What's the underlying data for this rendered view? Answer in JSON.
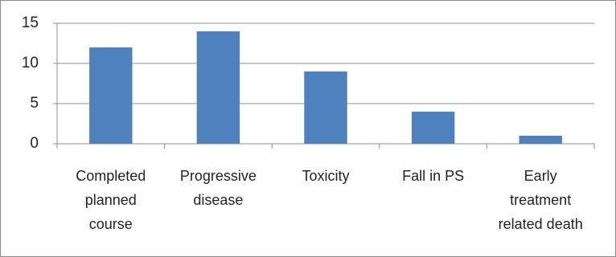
{
  "chart_data": {
    "type": "bar",
    "categories": [
      "Completed planned course",
      "Progressive disease",
      "Toxicity",
      "Fall in PS",
      "Early treatment related death"
    ],
    "values": [
      12,
      14,
      9,
      4,
      1
    ],
    "color": "#4f81bd",
    "ylim": [
      0,
      15
    ],
    "yticks": [
      0,
      5,
      10,
      15
    ],
    "grid": true
  }
}
